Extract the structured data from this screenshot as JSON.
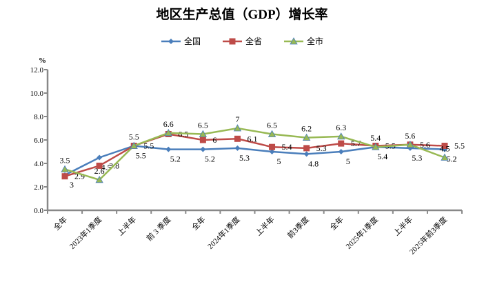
{
  "chart_data": {
    "type": "line",
    "title": "地区生产总值（GDP）增长率",
    "ylabel": "%",
    "ylim": [
      0,
      12
    ],
    "yticks": [
      "0.0",
      "2.0",
      "4.0",
      "6.0",
      "8.0",
      "10.0",
      "12.0"
    ],
    "grid": false,
    "legend_placement": "top",
    "categories": [
      "全年",
      "2023年1季度",
      "上半年",
      "前 3 季度",
      "全年",
      "2024年1季度",
      "上半年",
      "前3季度",
      "全年",
      "2025年1季度",
      "上半年",
      "2025年前3季度"
    ],
    "series": [
      {
        "name": "全国",
        "color": "#4a7ebb",
        "marker": "diamond",
        "values": [
          3.0,
          4.5,
          5.5,
          5.2,
          5.2,
          5.3,
          5.0,
          4.8,
          5.0,
          5.4,
          5.3,
          5.2
        ]
      },
      {
        "name": "全省",
        "color": "#be4b48",
        "marker": "square",
        "values": [
          2.9,
          3.8,
          5.5,
          6.5,
          6.0,
          6.1,
          5.4,
          5.3,
          5.7,
          5.5,
          5.6,
          5.5
        ]
      },
      {
        "name": "全市",
        "color": "#98b954",
        "marker": "triangle",
        "values": [
          3.5,
          2.6,
          5.5,
          6.6,
          6.5,
          7.0,
          6.5,
          6.2,
          6.3,
          5.4,
          5.6,
          4.5
        ]
      }
    ]
  }
}
